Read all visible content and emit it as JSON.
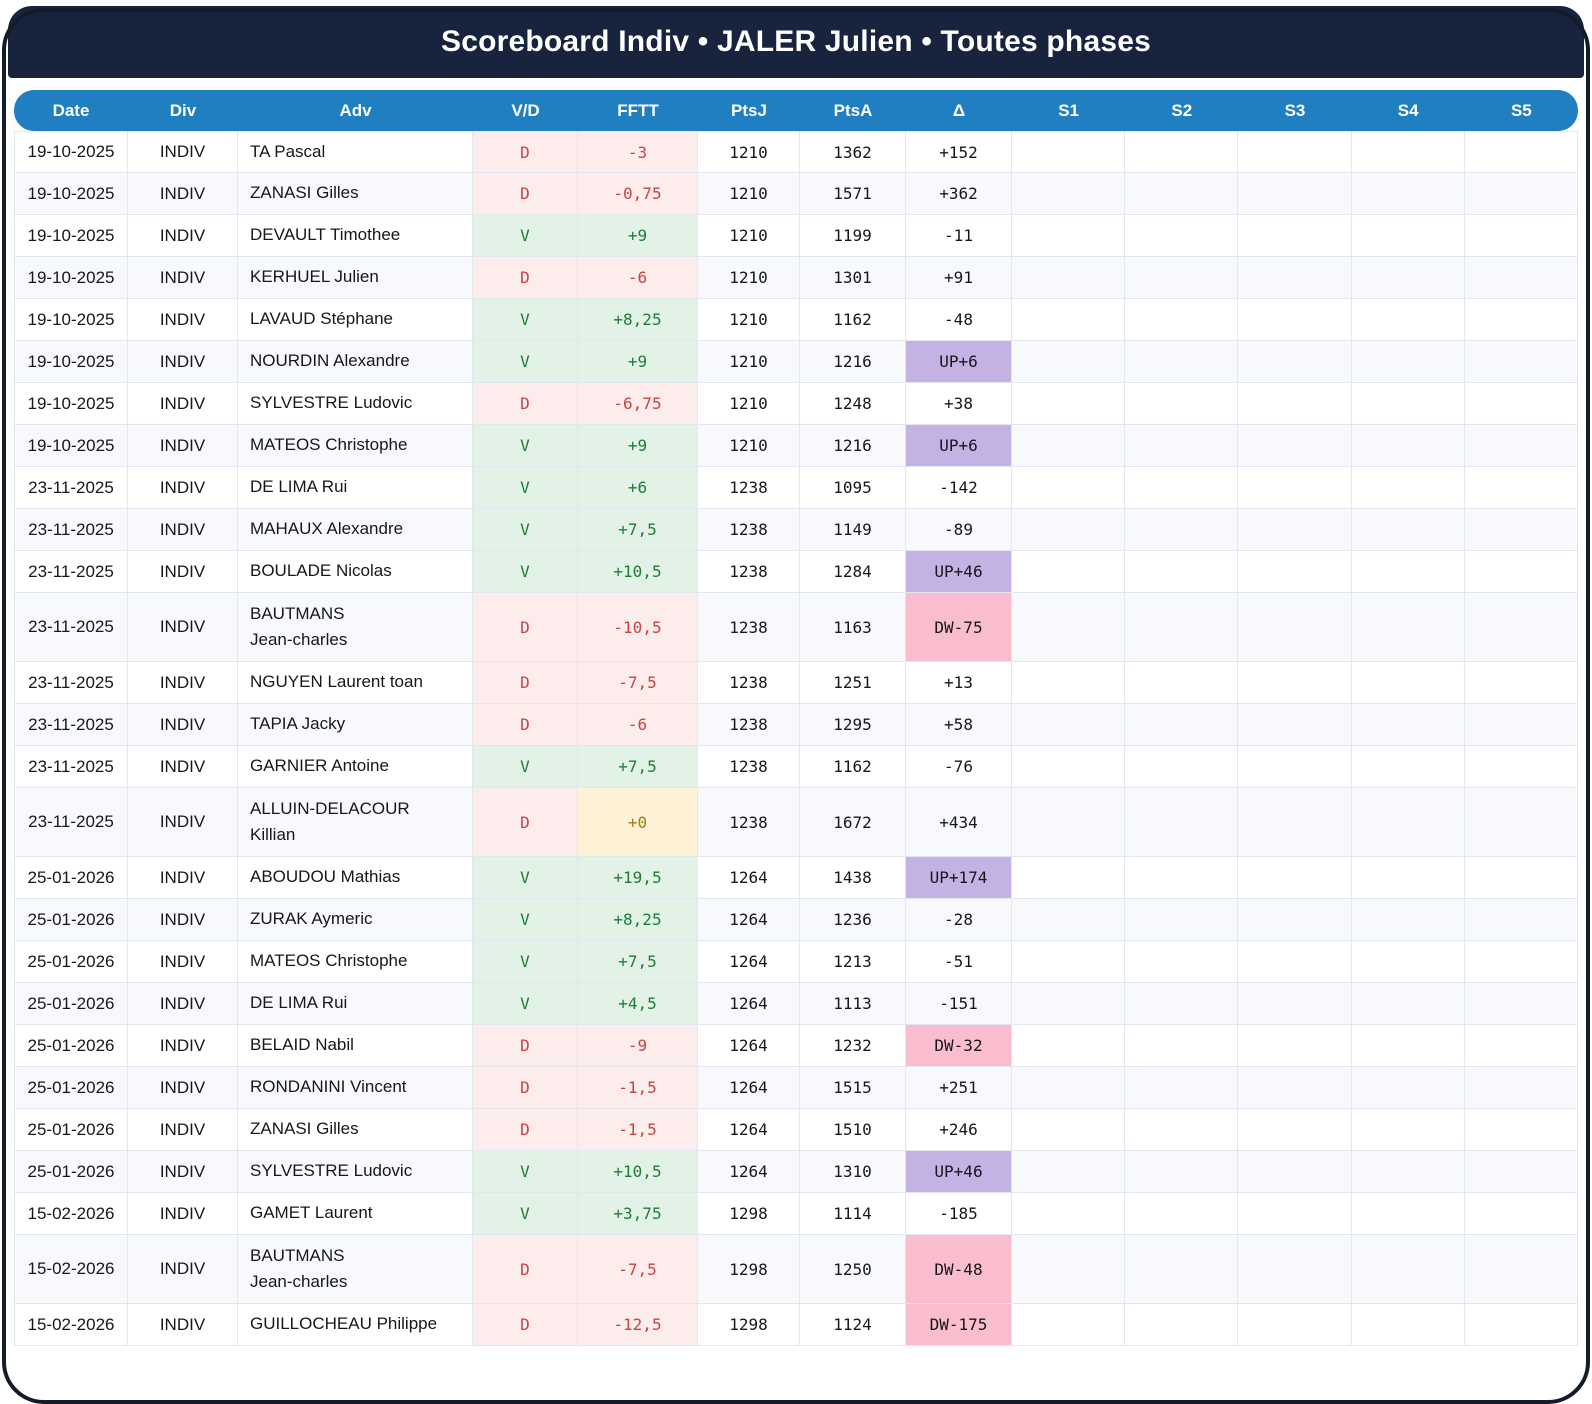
{
  "title": "Scoreboard Indiv • JALER Julien • Toutes phases",
  "columns": [
    "Date",
    "Div",
    "Adv",
    "V/D",
    "FFTT",
    "PtsJ",
    "PtsA",
    "Δ",
    "S1",
    "S2",
    "S3",
    "S4",
    "S5"
  ],
  "colors": {
    "navy": "#18233e",
    "blue": "#1f7fc0",
    "win_bg": "#e3f2e7",
    "win_text": "#1e7d35",
    "loss_bg": "#fdecec",
    "loss_text": "#c74444",
    "zero_bg": "#fdf1d6",
    "zero_text": "#a97b17",
    "up_bg": "#c3b2e3",
    "down_bg": "#fabdcd",
    "row_alt": "#f7f9fc",
    "border": "#e1e6f0"
  },
  "rows": [
    {
      "date": "19-10-2025",
      "div": "INDIV",
      "adv": "TA Pascal",
      "vd": "D",
      "fftt": "-3",
      "fftt_style": "loss",
      "ptsj": "1210",
      "ptsa": "1362",
      "delta": "+152",
      "delta_style": "plain",
      "sets": [
        "",
        "",
        "",
        "",
        ""
      ]
    },
    {
      "date": "19-10-2025",
      "div": "INDIV",
      "adv": "ZANASI Gilles",
      "vd": "D",
      "fftt": "-0,75",
      "fftt_style": "loss",
      "ptsj": "1210",
      "ptsa": "1571",
      "delta": "+362",
      "delta_style": "plain",
      "sets": [
        "",
        "",
        "",
        "",
        ""
      ]
    },
    {
      "date": "19-10-2025",
      "div": "INDIV",
      "adv": "DEVAULT Timothee",
      "vd": "V",
      "fftt": "+9",
      "fftt_style": "win",
      "ptsj": "1210",
      "ptsa": "1199",
      "delta": "-11",
      "delta_style": "plain",
      "sets": [
        "",
        "",
        "",
        "",
        ""
      ]
    },
    {
      "date": "19-10-2025",
      "div": "INDIV",
      "adv": "KERHUEL Julien",
      "vd": "D",
      "fftt": "-6",
      "fftt_style": "loss",
      "ptsj": "1210",
      "ptsa": "1301",
      "delta": "+91",
      "delta_style": "plain",
      "sets": [
        "",
        "",
        "",
        "",
        ""
      ]
    },
    {
      "date": "19-10-2025",
      "div": "INDIV",
      "adv": "LAVAUD Stéphane",
      "vd": "V",
      "fftt": "+8,25",
      "fftt_style": "win",
      "ptsj": "1210",
      "ptsa": "1162",
      "delta": "-48",
      "delta_style": "plain",
      "sets": [
        "",
        "",
        "",
        "",
        ""
      ]
    },
    {
      "date": "19-10-2025",
      "div": "INDIV",
      "adv": "NOURDIN Alexandre",
      "vd": "V",
      "fftt": "+9",
      "fftt_style": "win",
      "ptsj": "1210",
      "ptsa": "1216",
      "delta": "UP+6",
      "delta_style": "up",
      "sets": [
        "",
        "",
        "",
        "",
        ""
      ]
    },
    {
      "date": "19-10-2025",
      "div": "INDIV",
      "adv": "SYLVESTRE Ludovic",
      "vd": "D",
      "fftt": "-6,75",
      "fftt_style": "loss",
      "ptsj": "1210",
      "ptsa": "1248",
      "delta": "+38",
      "delta_style": "plain",
      "sets": [
        "",
        "",
        "",
        "",
        ""
      ]
    },
    {
      "date": "19-10-2025",
      "div": "INDIV",
      "adv": "MATEOS Christophe",
      "vd": "V",
      "fftt": "+9",
      "fftt_style": "win",
      "ptsj": "1210",
      "ptsa": "1216",
      "delta": "UP+6",
      "delta_style": "up",
      "sets": [
        "",
        "",
        "",
        "",
        ""
      ]
    },
    {
      "date": "23-11-2025",
      "div": "INDIV",
      "adv": "DE LIMA Rui",
      "vd": "V",
      "fftt": "+6",
      "fftt_style": "win",
      "ptsj": "1238",
      "ptsa": "1095",
      "delta": "-142",
      "delta_style": "plain",
      "sets": [
        "",
        "",
        "",
        "",
        ""
      ]
    },
    {
      "date": "23-11-2025",
      "div": "INDIV",
      "adv": "MAHAUX Alexandre",
      "vd": "V",
      "fftt": "+7,5",
      "fftt_style": "win",
      "ptsj": "1238",
      "ptsa": "1149",
      "delta": "-89",
      "delta_style": "plain",
      "sets": [
        "",
        "",
        "",
        "",
        ""
      ]
    },
    {
      "date": "23-11-2025",
      "div": "INDIV",
      "adv": "BOULADE Nicolas",
      "vd": "V",
      "fftt": "+10,5",
      "fftt_style": "win",
      "ptsj": "1238",
      "ptsa": "1284",
      "delta": "UP+46",
      "delta_style": "up",
      "sets": [
        "",
        "",
        "",
        "",
        ""
      ]
    },
    {
      "date": "23-11-2025",
      "div": "INDIV",
      "adv": "BAUTMANS\nJean-charles",
      "vd": "D",
      "fftt": "-10,5",
      "fftt_style": "loss",
      "ptsj": "1238",
      "ptsa": "1163",
      "delta": "DW-75",
      "delta_style": "down",
      "tall": true,
      "sets": [
        "",
        "",
        "",
        "",
        ""
      ]
    },
    {
      "date": "23-11-2025",
      "div": "INDIV",
      "adv": "NGUYEN Laurent toan",
      "vd": "D",
      "fftt": "-7,5",
      "fftt_style": "loss",
      "ptsj": "1238",
      "ptsa": "1251",
      "delta": "+13",
      "delta_style": "plain",
      "sets": [
        "",
        "",
        "",
        "",
        ""
      ]
    },
    {
      "date": "23-11-2025",
      "div": "INDIV",
      "adv": "TAPIA Jacky",
      "vd": "D",
      "fftt": "-6",
      "fftt_style": "loss",
      "ptsj": "1238",
      "ptsa": "1295",
      "delta": "+58",
      "delta_style": "plain",
      "sets": [
        "",
        "",
        "",
        "",
        ""
      ]
    },
    {
      "date": "23-11-2025",
      "div": "INDIV",
      "adv": "GARNIER Antoine",
      "vd": "V",
      "fftt": "+7,5",
      "fftt_style": "win",
      "ptsj": "1238",
      "ptsa": "1162",
      "delta": "-76",
      "delta_style": "plain",
      "sets": [
        "",
        "",
        "",
        "",
        ""
      ]
    },
    {
      "date": "23-11-2025",
      "div": "INDIV",
      "adv": "ALLUIN-DELACOUR\nKillian",
      "vd": "D",
      "fftt": "+0",
      "fftt_style": "zero",
      "ptsj": "1238",
      "ptsa": "1672",
      "delta": "+434",
      "delta_style": "plain",
      "tall": true,
      "sets": [
        "",
        "",
        "",
        "",
        ""
      ]
    },
    {
      "date": "25-01-2026",
      "div": "INDIV",
      "adv": "ABOUDOU Mathias",
      "vd": "V",
      "fftt": "+19,5",
      "fftt_style": "win",
      "ptsj": "1264",
      "ptsa": "1438",
      "delta": "UP+174",
      "delta_style": "up",
      "sets": [
        "",
        "",
        "",
        "",
        ""
      ]
    },
    {
      "date": "25-01-2026",
      "div": "INDIV",
      "adv": "ZURAK Aymeric",
      "vd": "V",
      "fftt": "+8,25",
      "fftt_style": "win",
      "ptsj": "1264",
      "ptsa": "1236",
      "delta": "-28",
      "delta_style": "plain",
      "sets": [
        "",
        "",
        "",
        "",
        ""
      ]
    },
    {
      "date": "25-01-2026",
      "div": "INDIV",
      "adv": "MATEOS Christophe",
      "vd": "V",
      "fftt": "+7,5",
      "fftt_style": "win",
      "ptsj": "1264",
      "ptsa": "1213",
      "delta": "-51",
      "delta_style": "plain",
      "sets": [
        "",
        "",
        "",
        "",
        ""
      ]
    },
    {
      "date": "25-01-2026",
      "div": "INDIV",
      "adv": "DE LIMA Rui",
      "vd": "V",
      "fftt": "+4,5",
      "fftt_style": "win",
      "ptsj": "1264",
      "ptsa": "1113",
      "delta": "-151",
      "delta_style": "plain",
      "sets": [
        "",
        "",
        "",
        "",
        ""
      ]
    },
    {
      "date": "25-01-2026",
      "div": "INDIV",
      "adv": "BELAID Nabil",
      "vd": "D",
      "fftt": "-9",
      "fftt_style": "loss",
      "ptsj": "1264",
      "ptsa": "1232",
      "delta": "DW-32",
      "delta_style": "down",
      "sets": [
        "",
        "",
        "",
        "",
        ""
      ]
    },
    {
      "date": "25-01-2026",
      "div": "INDIV",
      "adv": "RONDANINI Vincent",
      "vd": "D",
      "fftt": "-1,5",
      "fftt_style": "loss",
      "ptsj": "1264",
      "ptsa": "1515",
      "delta": "+251",
      "delta_style": "plain",
      "sets": [
        "",
        "",
        "",
        "",
        ""
      ]
    },
    {
      "date": "25-01-2026",
      "div": "INDIV",
      "adv": "ZANASI Gilles",
      "vd": "D",
      "fftt": "-1,5",
      "fftt_style": "loss",
      "ptsj": "1264",
      "ptsa": "1510",
      "delta": "+246",
      "delta_style": "plain",
      "sets": [
        "",
        "",
        "",
        "",
        ""
      ]
    },
    {
      "date": "25-01-2026",
      "div": "INDIV",
      "adv": "SYLVESTRE Ludovic",
      "vd": "V",
      "fftt": "+10,5",
      "fftt_style": "win",
      "ptsj": "1264",
      "ptsa": "1310",
      "delta": "UP+46",
      "delta_style": "up",
      "sets": [
        "",
        "",
        "",
        "",
        ""
      ]
    },
    {
      "date": "15-02-2026",
      "div": "INDIV",
      "adv": "GAMET Laurent",
      "vd": "V",
      "fftt": "+3,75",
      "fftt_style": "win",
      "ptsj": "1298",
      "ptsa": "1114",
      "delta": "-185",
      "delta_style": "plain",
      "sets": [
        "",
        "",
        "",
        "",
        ""
      ]
    },
    {
      "date": "15-02-2026",
      "div": "INDIV",
      "adv": "BAUTMANS\nJean-charles",
      "vd": "D",
      "fftt": "-7,5",
      "fftt_style": "loss",
      "ptsj": "1298",
      "ptsa": "1250",
      "delta": "DW-48",
      "delta_style": "down",
      "tall": true,
      "sets": [
        "",
        "",
        "",
        "",
        ""
      ]
    },
    {
      "date": "15-02-2026",
      "div": "INDIV",
      "adv": "GUILLOCHEAU Philippe",
      "vd": "D",
      "fftt": "-12,5",
      "fftt_style": "loss",
      "ptsj": "1298",
      "ptsa": "1124",
      "delta": "DW-175",
      "delta_style": "down",
      "sets": [
        "",
        "",
        "",
        "",
        ""
      ]
    }
  ]
}
